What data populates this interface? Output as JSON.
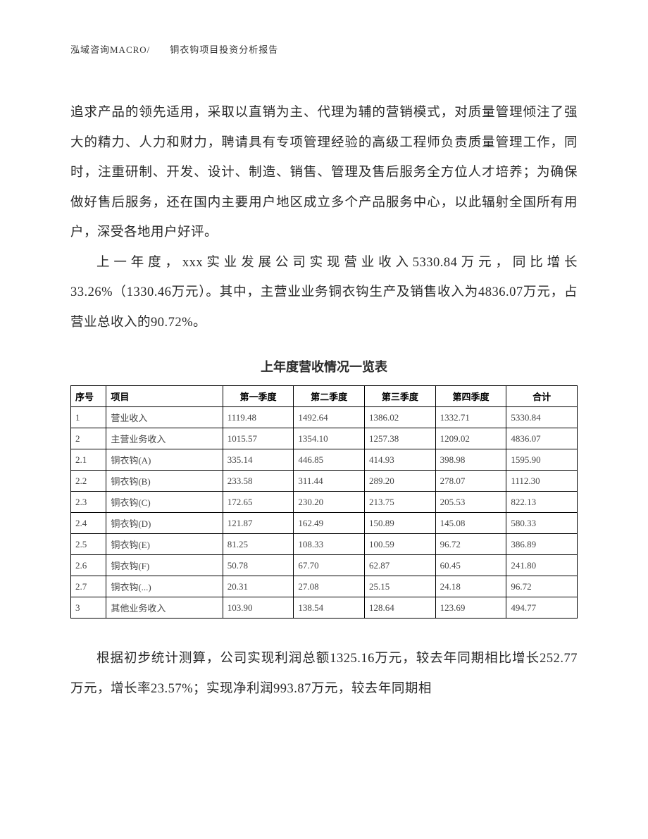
{
  "header": "泓域咨询MACRO/　　铜衣钩项目投资分析报告",
  "para1": "追求产品的领先适用，采取以直销为主、代理为辅的营销模式，对质量管理倾注了强大的精力、人力和财力，聘请具有专项管理经验的高级工程师负责质量管理工作，同时，注重研制、开发、设计、制造、销售、管理及售后服务全方位人才培养；为确保做好售后服务，还在国内主要用户地区成立多个产品服务中心，以此辐射全国所有用户，深受各地用户好评。",
  "para2": "上一年度，xxx实业发展公司实现营业收入5330.84万元，同比增长33.26%（1330.46万元）。其中，主营业业务铜衣钩生产及销售收入为4836.07万元，占营业总收入的90.72%。",
  "tableTitle": "上年度营收情况一览表",
  "table": {
    "columns": [
      "序号",
      "项目",
      "第一季度",
      "第二季度",
      "第三季度",
      "第四季度",
      "合计"
    ],
    "rows": [
      [
        "1",
        "营业收入",
        "1119.48",
        "1492.64",
        "1386.02",
        "1332.71",
        "5330.84"
      ],
      [
        "2",
        "主营业务收入",
        "1015.57",
        "1354.10",
        "1257.38",
        "1209.02",
        "4836.07"
      ],
      [
        "2.1",
        "铜衣钩(A)",
        "335.14",
        "446.85",
        "414.93",
        "398.98",
        "1595.90"
      ],
      [
        "2.2",
        "铜衣钩(B)",
        "233.58",
        "311.44",
        "289.20",
        "278.07",
        "1112.30"
      ],
      [
        "2.3",
        "铜衣钩(C)",
        "172.65",
        "230.20",
        "213.75",
        "205.53",
        "822.13"
      ],
      [
        "2.4",
        "铜衣钩(D)",
        "121.87",
        "162.49",
        "150.89",
        "145.08",
        "580.33"
      ],
      [
        "2.5",
        "铜衣钩(E)",
        "81.25",
        "108.33",
        "100.59",
        "96.72",
        "386.89"
      ],
      [
        "2.6",
        "铜衣钩(F)",
        "50.78",
        "67.70",
        "62.87",
        "60.45",
        "241.80"
      ],
      [
        "2.7",
        "铜衣钩(...)",
        "20.31",
        "27.08",
        "25.15",
        "24.18",
        "96.72"
      ],
      [
        "3",
        "其他业务收入",
        "103.90",
        "138.54",
        "128.64",
        "123.69",
        "494.77"
      ]
    ]
  },
  "para3": "根据初步统计测算，公司实现利润总额1325.16万元，较去年同期相比增长252.77万元，增长率23.57%；实现净利润993.87万元，较去年同期相"
}
